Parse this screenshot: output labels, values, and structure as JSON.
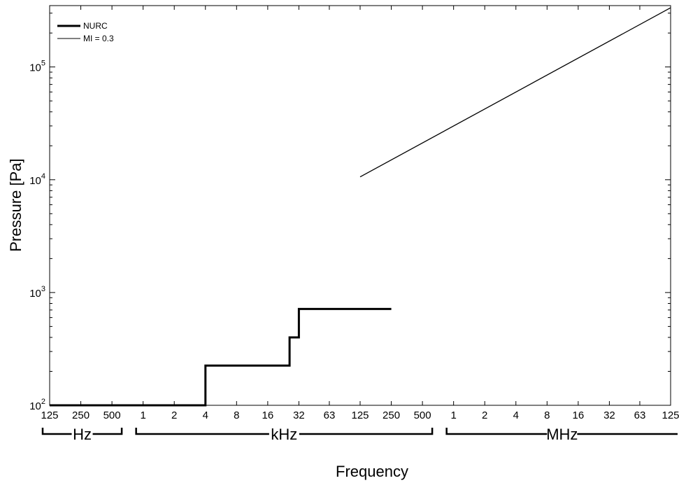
{
  "chart_data": {
    "type": "line",
    "xlabel": "Frequency",
    "ylabel": "Pressure [Pa]",
    "x_scale": "log2",
    "y_scale": "log10",
    "xlim": [
      125,
      125000000
    ],
    "ylim": [
      100,
      350000
    ],
    "grid": false,
    "legend_position": "top-left",
    "x_tick_labels": [
      "125",
      "250",
      "500",
      "1",
      "2",
      "4",
      "8",
      "16",
      "32",
      "63",
      "125",
      "250",
      "500",
      "1",
      "2",
      "4",
      "8",
      "16",
      "32",
      "63",
      "125"
    ],
    "x_tick_values": [
      125,
      250,
      500,
      1000,
      2000,
      4000,
      8000,
      16000,
      32000,
      63000,
      125000,
      250000,
      500000,
      1000000,
      2000000,
      4000000,
      8000000,
      16000000,
      32000000,
      63000000,
      125000000
    ],
    "y_ticks": [
      {
        "base": "10",
        "exp": "2",
        "value": 100
      },
      {
        "base": "10",
        "exp": "3",
        "value": 1000
      },
      {
        "base": "10",
        "exp": "4",
        "value": 10000
      },
      {
        "base": "10",
        "exp": "5",
        "value": 100000
      }
    ],
    "unit_groups": [
      {
        "label": "Hz",
        "from": 125,
        "to": 500
      },
      {
        "label": "kHz",
        "from": 1000,
        "to": 500000
      },
      {
        "label": "MHz",
        "from": 1000000,
        "to": 125000000
      }
    ],
    "series": [
      {
        "name": "NURC",
        "style": "thick",
        "color": "#000000",
        "points": [
          [
            125,
            100
          ],
          [
            4000,
            100
          ],
          [
            4000,
            225
          ],
          [
            26000,
            225
          ],
          [
            26000,
            400
          ],
          [
            32000,
            400
          ],
          [
            32000,
            715
          ],
          [
            250000,
            715
          ]
        ]
      },
      {
        "name": "MI = 0.3",
        "style": "thin",
        "color": "#000000",
        "points": [
          [
            125000,
            10600
          ],
          [
            125000000,
            335000
          ]
        ]
      }
    ]
  }
}
